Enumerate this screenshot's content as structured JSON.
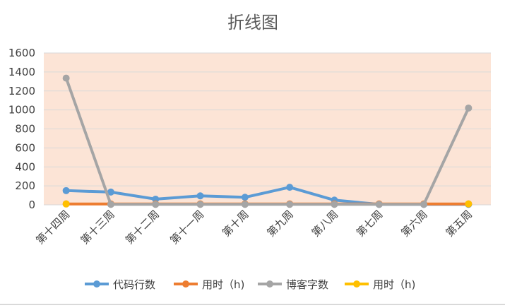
{
  "chart_data": {
    "type": "line",
    "title": "折线图",
    "xlabel": "",
    "ylabel": "",
    "categories": [
      "第十四周",
      "第十三周",
      "第十二周",
      "第十一周",
      "第十周",
      "第九周",
      "第八周",
      "第七周",
      "第六周",
      "第五周"
    ],
    "ylim": [
      0,
      1600
    ],
    "yticks": [
      0,
      200,
      400,
      600,
      800,
      1000,
      1200,
      1400,
      1600
    ],
    "grid": true,
    "legend": "bottom",
    "plot_background": "#fce4d6",
    "series": [
      {
        "name": "代码行数",
        "color": "#5b9bd5",
        "values": [
          150,
          135,
          60,
          95,
          80,
          185,
          50,
          5,
          5,
          5
        ]
      },
      {
        "name": "用时（h)",
        "color": "#ed7d31",
        "values": [
          10,
          10,
          10,
          10,
          10,
          10,
          10,
          10,
          10,
          10
        ]
      },
      {
        "name": "博客字数",
        "color": "#a5a5a5",
        "values": [
          1335,
          5,
          5,
          5,
          5,
          5,
          5,
          5,
          5,
          1020
        ]
      },
      {
        "name": "用时（h)",
        "color": "#ffc000",
        "values": [
          10,
          null,
          null,
          null,
          null,
          null,
          null,
          null,
          null,
          10
        ]
      }
    ]
  }
}
